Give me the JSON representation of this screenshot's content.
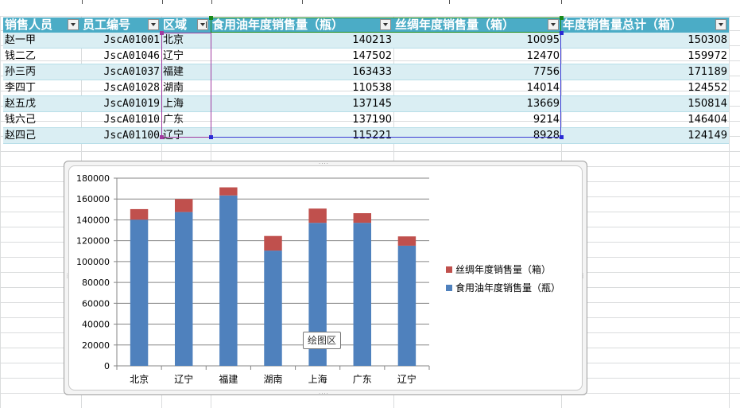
{
  "table": {
    "headers": [
      "销售人员",
      "员工编号",
      "区域",
      "食用油年度销售量（瓶）",
      "丝绸年度销售量（箱）",
      "年度销售量总计（箱）"
    ],
    "rows": [
      [
        "赵一甲",
        "JscA01001",
        "北京",
        "140213",
        "10095",
        "150308"
      ],
      [
        "钱二乙",
        "JscA01046",
        "辽宁",
        "147502",
        "12470",
        "159972"
      ],
      [
        "孙三丙",
        "JscA01037",
        "福建",
        "163433",
        "7756",
        "171189"
      ],
      [
        "李四丁",
        "JscA01028",
        "湖南",
        "110538",
        "14014",
        "124552"
      ],
      [
        "赵五戊",
        "JscA01019",
        "上海",
        "137145",
        "13669",
        "150814"
      ],
      [
        "钱六己",
        "JscA01010",
        "广东",
        "137190",
        "9214",
        "146404"
      ],
      [
        "赵四己",
        "JscA01100",
        "辽宁",
        "115221",
        "8928",
        "124149"
      ]
    ]
  },
  "tooltip": "绘图区",
  "colors": {
    "header": "#4bacc6",
    "band": "#daeef3",
    "oil_series": "#4f81bd",
    "silk_series": "#c0504d"
  },
  "chart_data": {
    "type": "bar",
    "stacked": true,
    "categories": [
      "北京",
      "辽宁",
      "福建",
      "湖南",
      "上海",
      "广东",
      "辽宁"
    ],
    "series": [
      {
        "name": "食用油年度销售量（瓶）",
        "values": [
          140213,
          147502,
          163433,
          110538,
          137145,
          137190,
          115221
        ],
        "color": "#4f81bd"
      },
      {
        "name": "丝绸年度销售量（箱）",
        "values": [
          10095,
          12470,
          7756,
          14014,
          13669,
          9214,
          8928
        ],
        "color": "#c0504d"
      }
    ],
    "ylim": [
      0,
      180000
    ],
    "yticks": [
      "0",
      "20000",
      "40000",
      "60000",
      "80000",
      "100000",
      "120000",
      "140000",
      "160000",
      "180000"
    ],
    "grid": true,
    "legend_position": "right",
    "legend": [
      "丝绸年度销售量（箱）",
      "食用油年度销售量（瓶）"
    ]
  }
}
